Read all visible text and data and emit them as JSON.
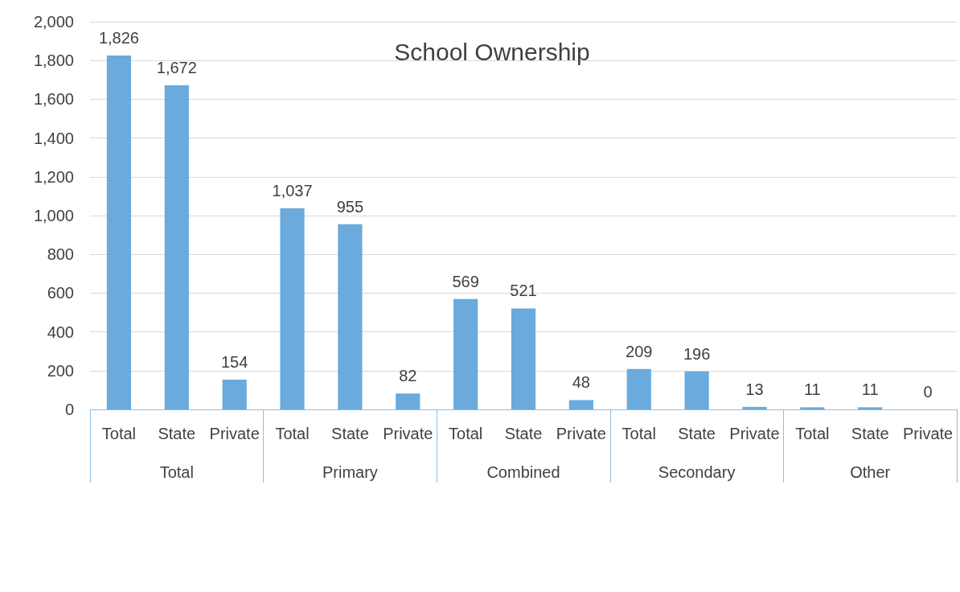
{
  "chart_data": {
    "type": "bar",
    "title": "School Ownership",
    "categories": [
      "Total",
      "State",
      "Private",
      "Total",
      "State",
      "Private",
      "Total",
      "State",
      "Private",
      "Total",
      "State",
      "Private",
      "Total",
      "State",
      "Private"
    ],
    "values": [
      1826,
      1672,
      154,
      1037,
      955,
      82,
      569,
      521,
      48,
      209,
      196,
      13,
      11,
      11,
      0
    ],
    "value_labels": [
      "1,826",
      "1,672",
      "154",
      "1,037",
      "955",
      "82",
      "569",
      "521",
      "48",
      "209",
      "196",
      "13",
      "11",
      "11",
      "0"
    ],
    "color": "#6aaadc",
    "annotations": [
      "Total",
      "Primary",
      "Combined",
      "Secondary",
      "Other"
    ],
    "ylim": [
      0,
      2000
    ],
    "yticks": [
      0,
      200,
      400,
      600,
      800,
      {
        "value": 1000,
        "label": "1,000"
      },
      {
        "value": 1200,
        "label": "1,200"
      },
      {
        "value": 1400,
        "label": "1,400"
      },
      {
        "value": 1600,
        "label": "1,600"
      },
      {
        "value": 1800,
        "label": "1,800"
      },
      {
        "value": 2000,
        "label": "2,000"
      }
    ],
    "grid": "y"
  }
}
